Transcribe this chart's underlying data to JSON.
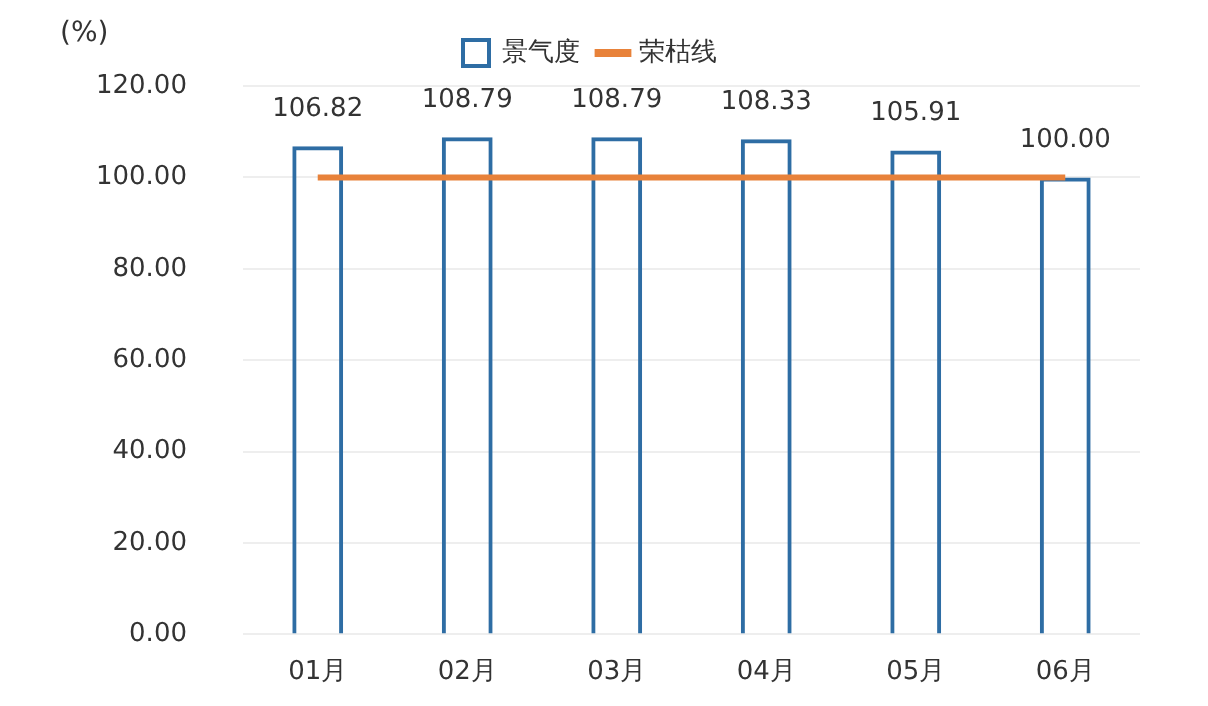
{
  "chart_data": {
    "type": "bar",
    "ylabel": "(%)",
    "categories": [
      "01月",
      "02月",
      "03月",
      "04月",
      "05月",
      "06月"
    ],
    "series": [
      {
        "name": "景气度",
        "color": "#2e6da4",
        "values": [
          106.82,
          108.79,
          108.79,
          108.33,
          105.91,
          100.0
        ],
        "value_labels": [
          "106.82",
          "108.79",
          "108.79",
          "108.33",
          "105.91",
          "100.00"
        ]
      },
      {
        "name": "荣枯线",
        "type": "line",
        "color": "#e8823a",
        "values": [
          100,
          100,
          100,
          100,
          100,
          100
        ]
      }
    ],
    "ylim": [
      0,
      120
    ],
    "yticks": [
      {
        "value": 0,
        "label": "0.00"
      },
      {
        "value": 20,
        "label": "20.00"
      },
      {
        "value": 40,
        "label": "40.00"
      },
      {
        "value": 60,
        "label": "60.00"
      },
      {
        "value": 80,
        "label": "80.00"
      },
      {
        "value": 100,
        "label": "100.00"
      },
      {
        "value": 120,
        "label": "120.00"
      }
    ],
    "grid": "y",
    "legend": "top",
    "marker": "none"
  }
}
